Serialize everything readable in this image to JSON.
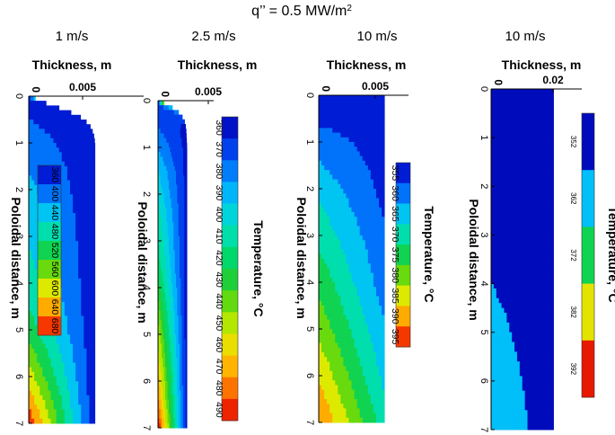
{
  "figure_title": "q’’ = 0.5 MW/m",
  "figure_title_sup": "2",
  "chart_data": [
    {
      "type": "heatmap",
      "subtitle": "1 m/s",
      "xlabel": "Thickness, m",
      "ylabel": "Poloidal distance, m",
      "xticks": [
        0,
        0.005
      ],
      "xtick_labels": [
        "0",
        "0.005"
      ],
      "xlim": [
        0,
        0.008
      ],
      "yticks": [
        0,
        1,
        2,
        3,
        4,
        5,
        6,
        7
      ],
      "ylim": [
        0,
        7
      ],
      "colorbar_label": "",
      "colorbar_ticks": [
        360,
        400,
        440,
        480,
        520,
        560,
        600,
        640,
        680
      ],
      "colorbar_tick_labels": [
        "360",
        "400",
        "440",
        "480",
        "520",
        "560",
        "600",
        "640",
        "680"
      ],
      "colorbar_range": [
        340,
        700
      ],
      "thickness_profile": [
        [
          0,
          0.0001
        ],
        [
          0.1,
          0.0008
        ],
        [
          0.2,
          0.0016
        ],
        [
          0.3,
          0.0026
        ],
        [
          0.45,
          0.0036
        ],
        [
          0.6,
          0.0042
        ],
        [
          0.8,
          0.0045
        ],
        [
          1.0,
          0.0046
        ],
        [
          7,
          0.0046
        ]
      ],
      "wall_temp": [
        [
          0,
          360
        ],
        [
          1,
          400
        ],
        [
          2,
          430
        ],
        [
          3,
          455
        ],
        [
          4,
          480
        ],
        [
          5,
          520
        ],
        [
          6,
          600
        ],
        [
          7,
          690
        ]
      ],
      "surface_temp": [
        [
          0,
          700
        ],
        [
          0.05,
          440
        ],
        [
          0.15,
          380
        ],
        [
          0.3,
          360
        ],
        [
          0.6,
          352
        ],
        [
          7,
          350
        ]
      ]
    },
    {
      "type": "heatmap",
      "subtitle": "2.5 m/s",
      "xlabel": "Thickness, m",
      "ylabel": "Poloidal distance, m",
      "xticks": [
        0,
        0.005
      ],
      "xtick_labels": [
        "0",
        "0.005"
      ],
      "xlim": [
        0,
        0.006
      ],
      "yticks": [
        0,
        1,
        2,
        3,
        4,
        5,
        6,
        7
      ],
      "ylim": [
        0,
        7
      ],
      "colorbar_label": "Temperature, °C",
      "colorbar_ticks": [
        360,
        370,
        380,
        390,
        400,
        410,
        420,
        430,
        440,
        450,
        460,
        470,
        480,
        490
      ],
      "colorbar_tick_labels": [
        "360",
        "370",
        "380",
        "390",
        "400",
        "410",
        "420",
        "430",
        "440",
        "450",
        "460",
        "470",
        "480",
        "490"
      ],
      "colorbar_range": [
        355,
        495
      ],
      "thickness_profile": [
        [
          0,
          0.0001
        ],
        [
          0.1,
          0.0012
        ],
        [
          0.25,
          0.0022
        ],
        [
          0.4,
          0.0028
        ],
        [
          0.6,
          0.003
        ],
        [
          1.0,
          0.0031
        ],
        [
          7,
          0.0031
        ]
      ],
      "wall_temp": [
        [
          0,
          360
        ],
        [
          0.6,
          375
        ],
        [
          1.5,
          395
        ],
        [
          2.5,
          410
        ],
        [
          3.5,
          420
        ],
        [
          4.5,
          440
        ],
        [
          5.5,
          460
        ],
        [
          6.5,
          480
        ],
        [
          7,
          495
        ]
      ],
      "surface_temp": [
        [
          0,
          495
        ],
        [
          0.1,
          400
        ],
        [
          0.3,
          370
        ],
        [
          0.6,
          362
        ],
        [
          7,
          358
        ]
      ]
    },
    {
      "type": "heatmap",
      "subtitle": "10 m/s",
      "xlabel": "Thickness, m",
      "ylabel": "Poloidal distance, m",
      "xticks": [
        0,
        0.005
      ],
      "xtick_labels": [
        "0",
        "0.005"
      ],
      "xlim": [
        0,
        0.0078
      ],
      "yticks": [
        0,
        1,
        2,
        3,
        4,
        5,
        6,
        7
      ],
      "ylim": [
        0,
        7
      ],
      "colorbar_label": "Temperature, °C",
      "colorbar_ticks": [
        355,
        360,
        365,
        370,
        375,
        380,
        385,
        390,
        395
      ],
      "colorbar_tick_labels": [
        "355",
        "360",
        "365",
        "370",
        "375",
        "380",
        "385",
        "390",
        "395"
      ],
      "colorbar_range": [
        352.5,
        397.5
      ],
      "thickness_profile": [
        [
          0,
          0.0057
        ],
        [
          7,
          0.0057
        ]
      ],
      "wall_temp": [
        [
          0,
          353
        ],
        [
          1,
          360
        ],
        [
          2,
          366
        ],
        [
          3,
          371
        ],
        [
          4,
          376
        ],
        [
          5,
          381
        ],
        [
          6,
          387
        ],
        [
          7,
          393
        ]
      ],
      "surface_temp": [
        [
          0,
          353
        ],
        [
          1,
          355
        ],
        [
          2,
          356
        ],
        [
          3,
          358
        ],
        [
          4,
          360
        ],
        [
          5,
          363
        ],
        [
          6,
          366
        ],
        [
          7,
          370
        ]
      ]
    },
    {
      "type": "heatmap",
      "subtitle": "10 m/s",
      "xlabel": "Thickness, m",
      "ylabel": "Poloidal distance, m",
      "xticks": [
        0,
        0.02
      ],
      "xtick_labels": [
        "0",
        "0.02"
      ],
      "xlim": [
        0,
        0.032
      ],
      "yticks": [
        0,
        1,
        2,
        3,
        4,
        5,
        6,
        7
      ],
      "ylim": [
        0,
        7
      ],
      "colorbar_label": "Temperature, °C",
      "colorbar_ticks": [
        352,
        362,
        372,
        382,
        392
      ],
      "colorbar_tick_labels": [
        "352",
        "362",
        "372",
        "382",
        "392"
      ],
      "colorbar_range": [
        351,
        393
      ],
      "thickness_profile": [
        [
          0,
          0.022
        ],
        [
          7,
          0.022
        ]
      ],
      "wall_temp": [
        [
          0,
          352
        ],
        [
          1,
          353
        ],
        [
          2,
          354
        ],
        [
          3,
          355
        ],
        [
          4,
          357
        ],
        [
          5,
          359
        ],
        [
          6,
          361
        ],
        [
          7,
          363
        ]
      ],
      "surface_temp": [
        [
          0,
          352
        ],
        [
          7,
          353
        ]
      ]
    }
  ]
}
